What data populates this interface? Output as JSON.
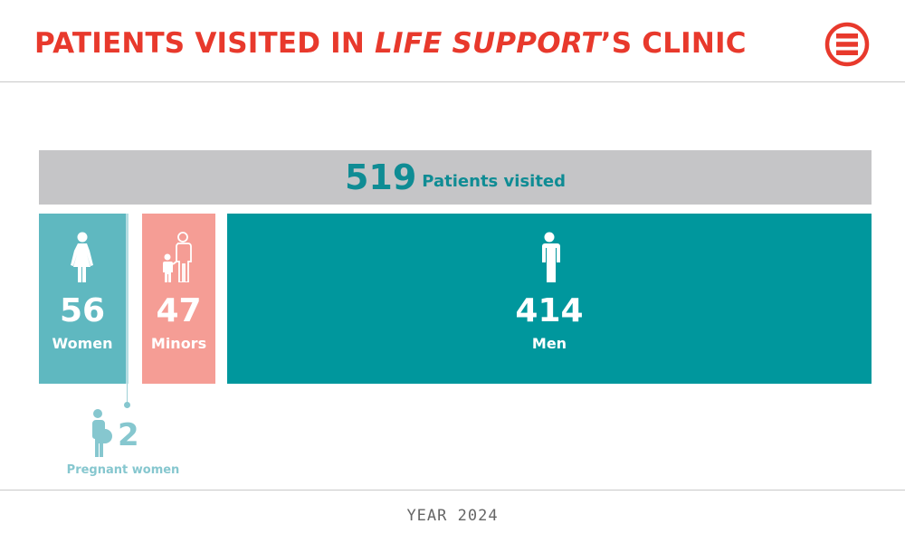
{
  "header": {
    "title_part1": "PATIENTS VISITED IN ",
    "title_italic": "LIFE SUPPORT",
    "title_part2": "’S CLINIC",
    "logo_icon": "emergency-e-logo-icon"
  },
  "colors": {
    "title": "#e8392c",
    "total_bar": "#c5c5c7",
    "total_text": "#0f8c94",
    "women": "#5fb8c0",
    "minors": "#f59d95",
    "men": "#00979d",
    "pregnant": "#86c7cf"
  },
  "chart_data": {
    "type": "bar",
    "total": {
      "value": 519,
      "label": "Patients visited"
    },
    "categories": [
      "Women",
      "Minors",
      "Men"
    ],
    "values": [
      56,
      47,
      414
    ],
    "icons": [
      "woman-icon",
      "adult-and-child-icon",
      "man-icon"
    ],
    "subset": {
      "of": "Women",
      "value": 2,
      "label": "Pregnant women",
      "icon": "pregnant-woman-icon"
    }
  },
  "display": {
    "total_value": "519",
    "women_value": "56",
    "minors_value": "47",
    "men_value": "414",
    "pregnant_value": "2"
  },
  "footer": {
    "year": "YEAR 2024"
  }
}
